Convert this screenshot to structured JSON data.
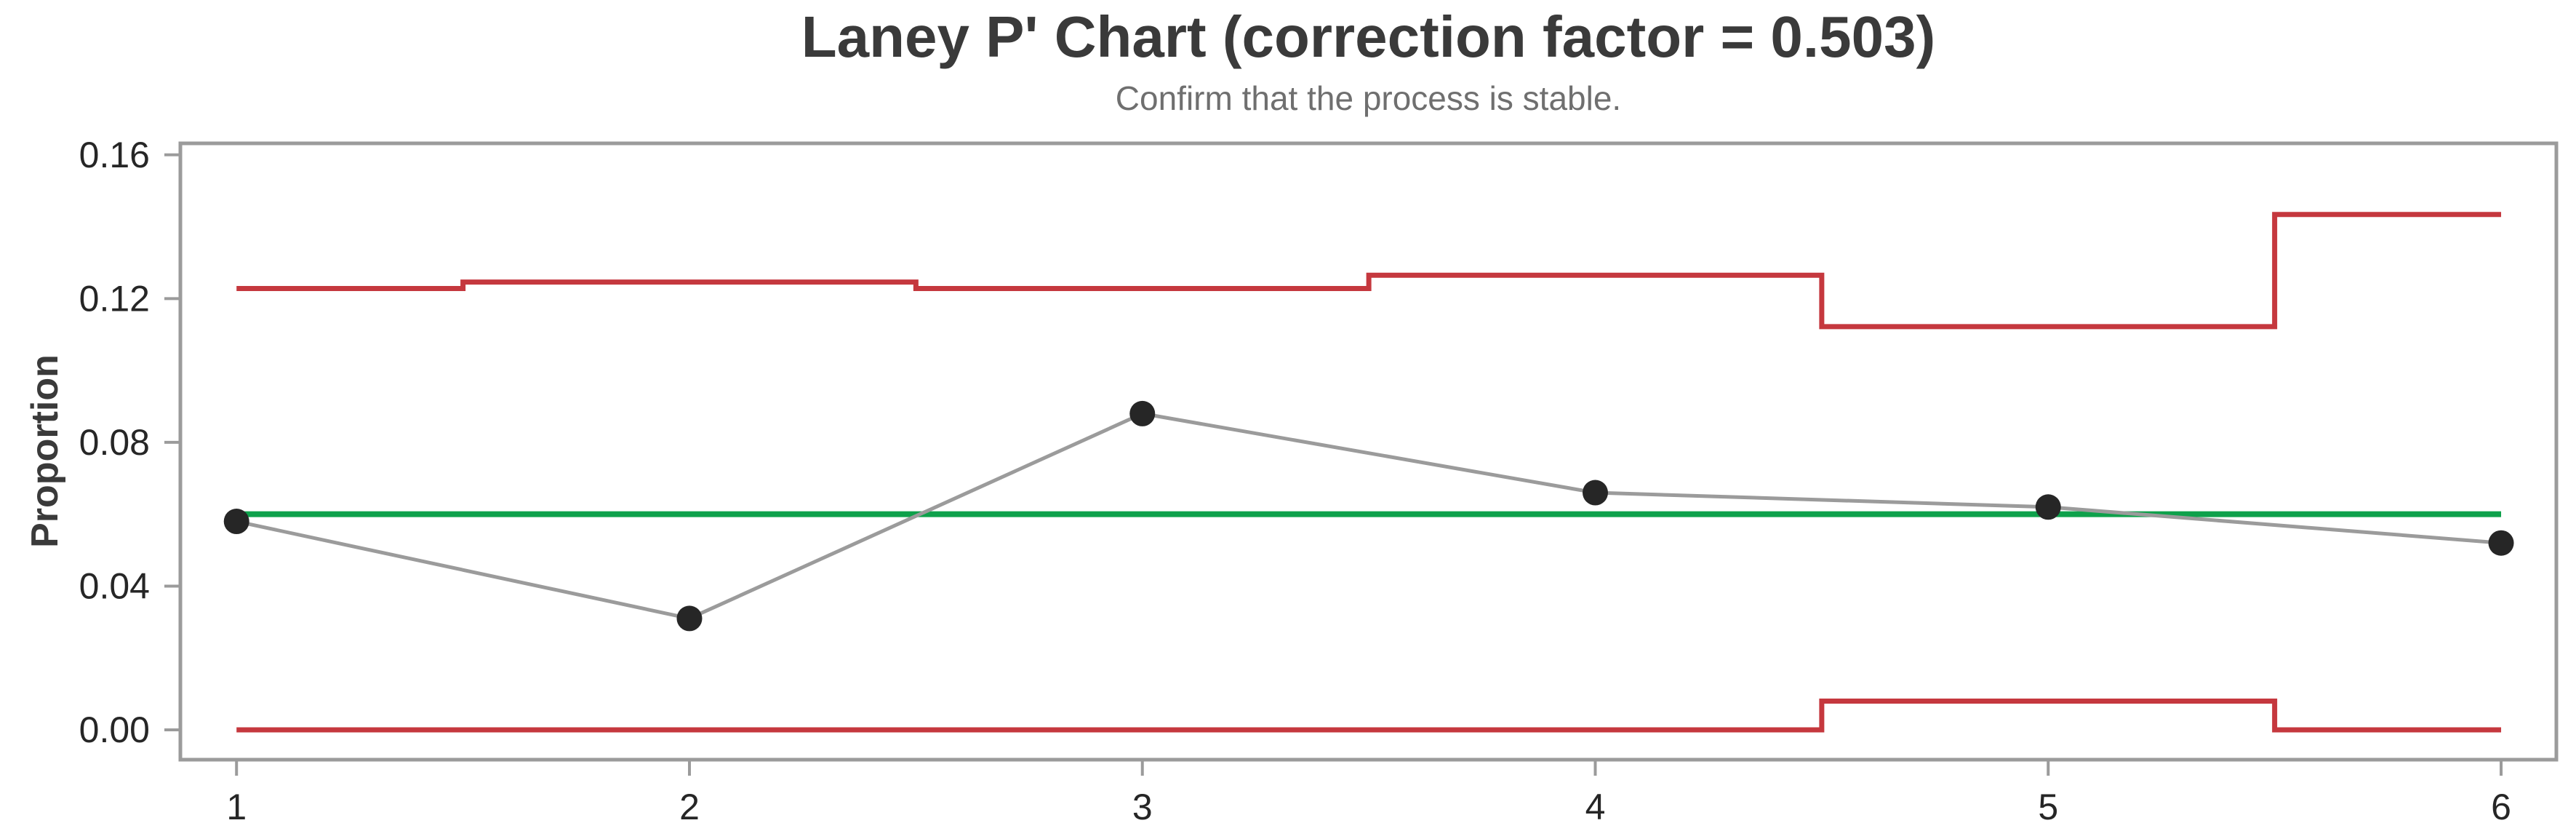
{
  "header": {
    "title": "Laney P' Chart (correction factor = 0.503)",
    "subtitle": "Confirm that the process is stable."
  },
  "chart_data": {
    "type": "line",
    "title": "Laney P' Chart (correction factor = 0.503)",
    "subtitle": "Confirm that the process is stable.",
    "xlabel": "",
    "ylabel": "Proportion",
    "x": [
      1,
      2,
      3,
      4,
      5,
      6
    ],
    "series": [
      {
        "name": "proportion",
        "values": [
          0.058,
          0.031,
          0.088,
          0.066,
          0.062,
          0.052
        ]
      }
    ],
    "center_line_value": 0.06,
    "ucl_by_subgroup": [
      0.1228,
      0.1246,
      0.1228,
      0.1265,
      0.1122,
      0.1434
    ],
    "lcl_by_subgroup": [
      0.0,
      0.0,
      0.0,
      0.0,
      0.008,
      0.0
    ],
    "step_boundaries": [
      1.5,
      2.5,
      3.5,
      4.5,
      5.5
    ],
    "xlim": [
      0.876,
      6.122
    ],
    "ylim": [
      -0.0083,
      0.1632
    ],
    "yticks": [
      {
        "value": 0.0,
        "label": "0.00"
      },
      {
        "value": 0.04,
        "label": "0.04"
      },
      {
        "value": 0.08,
        "label": "0.08"
      },
      {
        "value": 0.12,
        "label": "0.12"
      },
      {
        "value": 0.16,
        "label": "0.16"
      }
    ],
    "xticks": [
      {
        "value": 1,
        "label": "1"
      },
      {
        "value": 2,
        "label": "2"
      },
      {
        "value": 3,
        "label": "3"
      },
      {
        "value": 4,
        "label": "4"
      },
      {
        "value": 5,
        "label": "5"
      },
      {
        "value": 6,
        "label": "6"
      }
    ],
    "grid": false,
    "legend": "none",
    "colors": {
      "limit_line": "#C5383E",
      "center_line": "#0EA14B",
      "connect_line": "#9B9B9B",
      "marker": "#262626",
      "frame": "#9B9B9B"
    }
  }
}
